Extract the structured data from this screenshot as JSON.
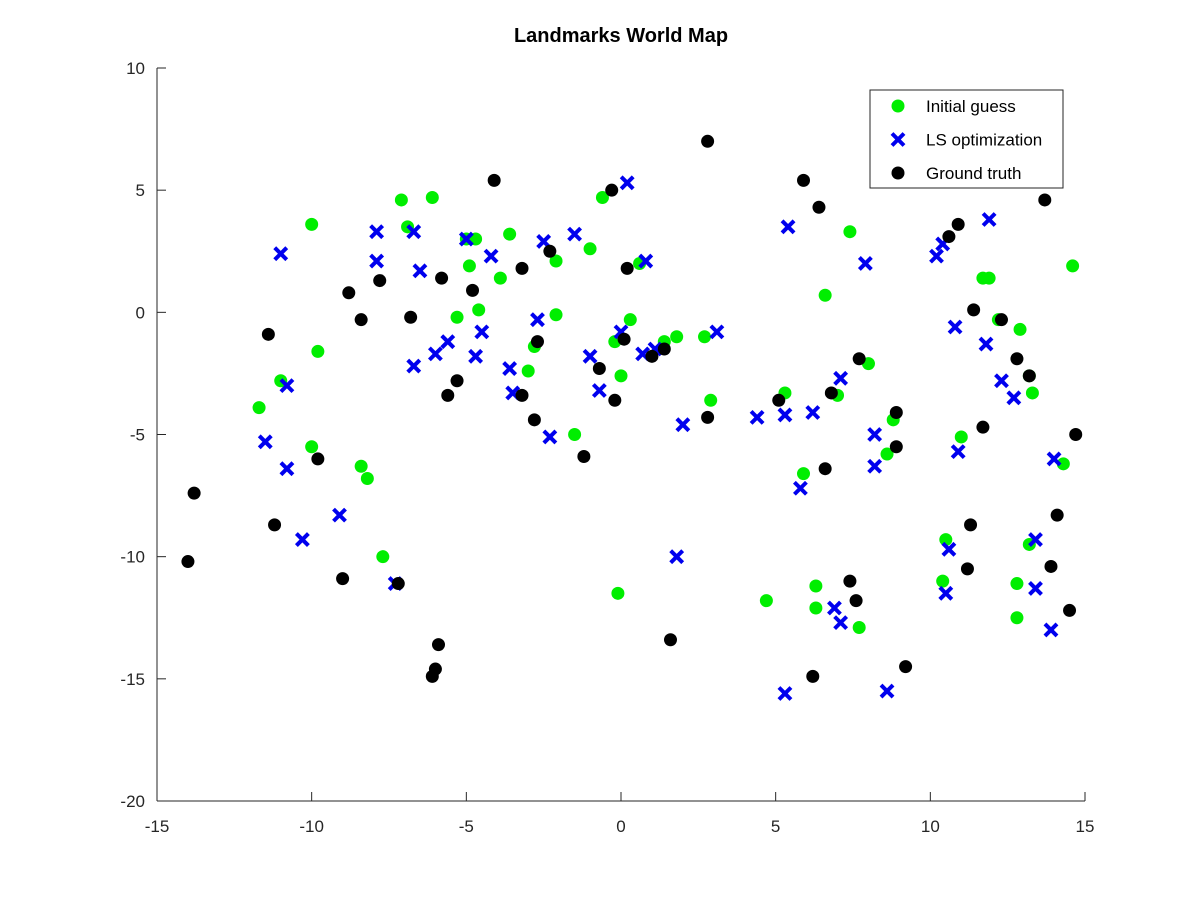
{
  "chart_data": {
    "type": "scatter",
    "title": "Landmarks World Map",
    "xlabel": "",
    "ylabel": "",
    "xlim": [
      -15,
      15
    ],
    "ylim": [
      -20,
      10
    ],
    "xticks": [
      -15,
      -10,
      -5,
      0,
      5,
      10,
      15
    ],
    "yticks": [
      -20,
      -15,
      -10,
      -5,
      0,
      5,
      10
    ],
    "grid": false,
    "legend_position": "top-right",
    "series": [
      {
        "name": "Initial guess",
        "marker": "circle",
        "color": "#00ee00",
        "points": [
          [
            -11.7,
            -3.9
          ],
          [
            -11.0,
            -2.8
          ],
          [
            -10.0,
            3.6
          ],
          [
            -9.8,
            -1.6
          ],
          [
            -10.0,
            -5.5
          ],
          [
            -8.4,
            -6.3
          ],
          [
            -8.2,
            -6.8
          ],
          [
            -7.7,
            -10.0
          ],
          [
            -7.1,
            4.6
          ],
          [
            -6.9,
            3.5
          ],
          [
            -6.1,
            4.7
          ],
          [
            -5.3,
            -0.2
          ],
          [
            -5.0,
            3.0
          ],
          [
            -4.9,
            1.9
          ],
          [
            -4.7,
            3.0
          ],
          [
            -4.6,
            0.1
          ],
          [
            -3.9,
            1.4
          ],
          [
            -3.6,
            3.2
          ],
          [
            -3.0,
            -2.4
          ],
          [
            -2.8,
            -1.4
          ],
          [
            -2.1,
            2.1
          ],
          [
            -2.1,
            -0.1
          ],
          [
            -1.5,
            -5.0
          ],
          [
            -1.0,
            2.6
          ],
          [
            -0.6,
            4.7
          ],
          [
            -0.2,
            -1.2
          ],
          [
            0.0,
            -2.6
          ],
          [
            0.3,
            -0.3
          ],
          [
            0.6,
            2.0
          ],
          [
            1.4,
            -1.2
          ],
          [
            1.8,
            -1.0
          ],
          [
            2.7,
            -1.0
          ],
          [
            2.9,
            -3.6
          ],
          [
            -0.1,
            -11.5
          ],
          [
            4.7,
            -11.8
          ],
          [
            5.3,
            -3.3
          ],
          [
            5.9,
            -6.6
          ],
          [
            6.3,
            -11.2
          ],
          [
            6.3,
            -12.1
          ],
          [
            6.6,
            0.7
          ],
          [
            7.0,
            -3.4
          ],
          [
            7.4,
            3.3
          ],
          [
            7.7,
            -12.9
          ],
          [
            8.0,
            -2.1
          ],
          [
            8.6,
            -5.8
          ],
          [
            8.8,
            -4.4
          ],
          [
            10.4,
            -11.0
          ],
          [
            10.5,
            -9.3
          ],
          [
            11.0,
            -5.1
          ],
          [
            11.7,
            1.4
          ],
          [
            11.9,
            1.4
          ],
          [
            12.2,
            -0.3
          ],
          [
            12.8,
            -11.1
          ],
          [
            12.8,
            -12.5
          ],
          [
            12.9,
            -0.7
          ],
          [
            13.2,
            -9.5
          ],
          [
            13.2,
            -2.6
          ],
          [
            13.3,
            -3.3
          ],
          [
            14.3,
            -6.2
          ],
          [
            14.6,
            1.9
          ]
        ]
      },
      {
        "name": "LS optimization",
        "marker": "x",
        "color": "#0000ee",
        "points": [
          [
            -11.0,
            2.4
          ],
          [
            -11.5,
            -5.3
          ],
          [
            -10.8,
            -3.0
          ],
          [
            -10.8,
            -6.4
          ],
          [
            -10.3,
            -9.3
          ],
          [
            -9.1,
            -8.3
          ],
          [
            -7.9,
            3.3
          ],
          [
            -7.9,
            2.1
          ],
          [
            -6.7,
            3.3
          ],
          [
            -7.3,
            -11.1
          ],
          [
            -6.5,
            1.7
          ],
          [
            -6.7,
            -2.2
          ],
          [
            -6.0,
            -1.7
          ],
          [
            -5.6,
            -1.2
          ],
          [
            -5.0,
            3.0
          ],
          [
            -4.7,
            -1.8
          ],
          [
            -4.5,
            -0.8
          ],
          [
            -4.2,
            2.3
          ],
          [
            -3.6,
            -2.3
          ],
          [
            -3.5,
            -3.3
          ],
          [
            -2.7,
            -0.3
          ],
          [
            -2.5,
            2.9
          ],
          [
            -2.3,
            -5.1
          ],
          [
            -1.5,
            3.2
          ],
          [
            -1.0,
            -1.8
          ],
          [
            -0.7,
            -3.2
          ],
          [
            0.0,
            -0.8
          ],
          [
            0.2,
            5.3
          ],
          [
            0.7,
            -1.7
          ],
          [
            0.8,
            2.1
          ],
          [
            1.1,
            -1.5
          ],
          [
            3.1,
            -0.8
          ],
          [
            2.0,
            -4.6
          ],
          [
            1.8,
            -10.0
          ],
          [
            4.4,
            -4.3
          ],
          [
            5.3,
            -4.2
          ],
          [
            5.4,
            3.5
          ],
          [
            5.8,
            -7.2
          ],
          [
            6.2,
            -4.1
          ],
          [
            6.9,
            -12.1
          ],
          [
            7.1,
            -12.7
          ],
          [
            7.1,
            -2.7
          ],
          [
            7.9,
            2.0
          ],
          [
            8.2,
            -5.0
          ],
          [
            8.2,
            -6.3
          ],
          [
            8.6,
            -15.5
          ],
          [
            5.3,
            -15.6
          ],
          [
            10.2,
            2.3
          ],
          [
            10.4,
            2.8
          ],
          [
            10.6,
            -9.7
          ],
          [
            10.5,
            -11.5
          ],
          [
            10.8,
            -0.6
          ],
          [
            10.9,
            -5.7
          ],
          [
            11.8,
            -1.3
          ],
          [
            11.9,
            3.8
          ],
          [
            12.3,
            -2.8
          ],
          [
            12.7,
            -3.5
          ],
          [
            13.4,
            -9.3
          ],
          [
            13.4,
            -11.3
          ],
          [
            13.9,
            -13.0
          ],
          [
            14.0,
            -6.0
          ]
        ]
      },
      {
        "name": "Ground truth",
        "marker": "circle",
        "color": "#000000",
        "points": [
          [
            -14.0,
            -10.2
          ],
          [
            -13.8,
            -7.4
          ],
          [
            -11.4,
            -0.9
          ],
          [
            -11.2,
            -8.7
          ],
          [
            -9.8,
            -6.0
          ],
          [
            -9.0,
            -10.9
          ],
          [
            -8.8,
            0.8
          ],
          [
            -8.4,
            -0.3
          ],
          [
            -7.8,
            1.3
          ],
          [
            -7.2,
            -11.1
          ],
          [
            -6.8,
            -0.2
          ],
          [
            -6.1,
            -14.9
          ],
          [
            -6.0,
            -14.6
          ],
          [
            -5.9,
            -13.6
          ],
          [
            -5.8,
            1.4
          ],
          [
            -5.6,
            -3.4
          ],
          [
            -5.3,
            -2.8
          ],
          [
            -4.8,
            0.9
          ],
          [
            -4.1,
            5.4
          ],
          [
            -3.2,
            1.8
          ],
          [
            -3.2,
            -3.4
          ],
          [
            -2.8,
            -4.4
          ],
          [
            -2.7,
            -1.2
          ],
          [
            -2.3,
            2.5
          ],
          [
            -1.2,
            -5.9
          ],
          [
            -0.7,
            -2.3
          ],
          [
            -0.3,
            5.0
          ],
          [
            -0.2,
            -3.6
          ],
          [
            0.1,
            -1.1
          ],
          [
            0.2,
            1.8
          ],
          [
            1.0,
            -1.8
          ],
          [
            1.4,
            -1.5
          ],
          [
            1.6,
            -13.4
          ],
          [
            2.8,
            -4.3
          ],
          [
            2.8,
            7.0
          ],
          [
            5.1,
            -3.6
          ],
          [
            5.9,
            5.4
          ],
          [
            6.2,
            -14.9
          ],
          [
            6.4,
            4.3
          ],
          [
            6.6,
            -6.4
          ],
          [
            6.8,
            -3.3
          ],
          [
            7.4,
            -11.0
          ],
          [
            7.6,
            -11.8
          ],
          [
            7.7,
            -1.9
          ],
          [
            8.9,
            -4.1
          ],
          [
            8.9,
            -5.5
          ],
          [
            9.2,
            -14.5
          ],
          [
            10.6,
            3.1
          ],
          [
            10.9,
            3.6
          ],
          [
            11.2,
            -10.5
          ],
          [
            11.3,
            -8.7
          ],
          [
            11.4,
            0.1
          ],
          [
            11.7,
            -4.7
          ],
          [
            12.3,
            -0.3
          ],
          [
            12.8,
            -1.9
          ],
          [
            13.2,
            -2.6
          ],
          [
            13.7,
            4.6
          ],
          [
            13.9,
            -10.4
          ],
          [
            14.1,
            -8.3
          ],
          [
            14.5,
            -12.2
          ],
          [
            14.7,
            -5.0
          ]
        ]
      }
    ]
  }
}
